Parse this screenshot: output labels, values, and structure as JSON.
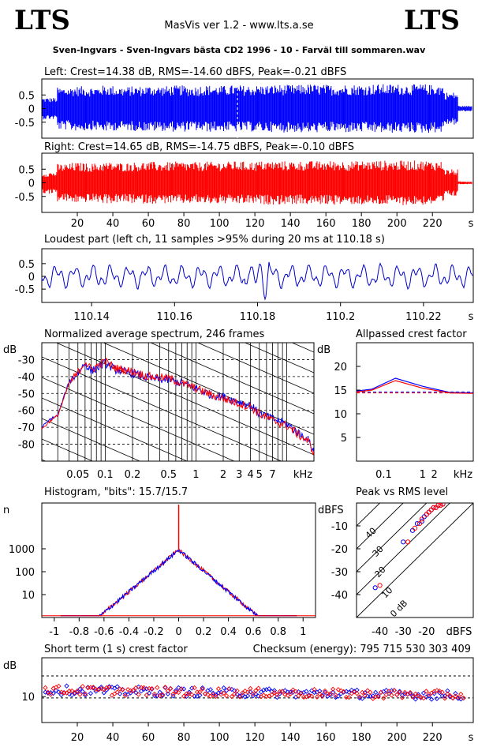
{
  "header": {
    "logo_left": "LTS",
    "logo_right": "LTS",
    "app_title": "MasVis ver 1.2 - www.lts.a.se",
    "file_name": "Sven-Ingvars - Sven-Ingvars bästa CD2 1996 - 10 - Farväl till sommaren.wav"
  },
  "colors": {
    "left": "#0000ff",
    "right": "#ff0000",
    "loudest": "#0000cc",
    "grid": "#000000"
  },
  "chart_data": [
    {
      "id": "left_waveform",
      "type": "area",
      "title": "Left: Crest=14.38 dB, RMS=-14.60 dBFS, Peak=-0.21 dBFS",
      "yticks": [
        "0.5",
        "0",
        "-0.5"
      ],
      "ylim": [
        -1,
        1
      ],
      "xlim": [
        0,
        243
      ],
      "series": [
        {
          "name": "Left",
          "envelope": [
            0.4,
            0.78,
            0.82,
            0.8,
            0.85,
            0.8,
            0.82,
            0.84,
            0.83,
            0.85,
            0.82,
            0.86,
            0.84,
            0.86,
            0.85,
            0.86,
            0.88,
            0.87,
            0.9,
            0.88,
            0.87,
            0.89,
            0.88,
            0.9,
            0.9,
            0.89,
            0.9,
            0.88,
            0.6,
            0.1
          ]
        }
      ]
    },
    {
      "id": "right_waveform",
      "type": "area",
      "title": "Right: Crest=14.65 dB, RMS=-14.75 dBFS, Peak=-0.10 dBFS",
      "yticks": [
        "0.5",
        "0",
        "-0.5"
      ],
      "ylim": [
        -1,
        1
      ],
      "xlim": [
        0,
        243
      ],
      "xticks": [
        "20",
        "40",
        "60",
        "80",
        "100",
        "120",
        "140",
        "160",
        "180",
        "200",
        "220"
      ],
      "xunit": "s",
      "series": [
        {
          "name": "Right",
          "envelope": [
            0.4,
            0.7,
            0.74,
            0.72,
            0.76,
            0.74,
            0.76,
            0.77,
            0.76,
            0.78,
            0.76,
            0.78,
            0.78,
            0.79,
            0.78,
            0.8,
            0.8,
            0.79,
            0.8,
            0.8,
            0.81,
            0.8,
            0.81,
            0.82,
            0.81,
            0.82,
            0.82,
            0.8,
            0.5,
            0.05
          ]
        }
      ]
    },
    {
      "id": "loudest_part",
      "type": "line",
      "title": "Loudest part (left  ch, 11 samples >95% during 20 ms at 110.18 s)",
      "yticks": [
        "0.5",
        "0",
        "-0.5"
      ],
      "ylim": [
        -1,
        1
      ],
      "xlim": [
        110.128,
        110.232
      ],
      "xticks": [
        "110.14",
        "110.16",
        "110.18",
        "110.2",
        "110.22"
      ],
      "xunit": "s"
    },
    {
      "id": "avg_spectrum",
      "type": "line",
      "title": "Normalized average spectrum, 246 frames",
      "ylabel": "dB",
      "yticks": [
        "-30",
        "-40",
        "-50",
        "-60",
        "-70",
        "-80"
      ],
      "ylim": [
        -90,
        -20
      ],
      "xticks": [
        "0.05",
        "0.1",
        "0.2",
        "0.5",
        "1",
        "2",
        "3",
        "4",
        "5",
        "7",
        "kHz"
      ],
      "xlim": [
        0.02,
        20
      ],
      "series": [
        {
          "name": "Left",
          "x": [
            0.02,
            0.025,
            0.03,
            0.035,
            0.04,
            0.05,
            0.06,
            0.07,
            0.08,
            0.1,
            0.13,
            0.16,
            0.2,
            0.3,
            0.5,
            0.7,
            1,
            1.5,
            2,
            3,
            4,
            5,
            7,
            10,
            14,
            17,
            20
          ],
          "values": [
            -70,
            -65,
            -63,
            -52,
            -43,
            -38,
            -32,
            -37,
            -35,
            -32,
            -36,
            -37,
            -38,
            -41,
            -42,
            -44,
            -47,
            -51,
            -52,
            -55,
            -57,
            -62,
            -65,
            -68,
            -74,
            -77,
            -84
          ]
        },
        {
          "name": "Right",
          "x": [
            0.02,
            0.025,
            0.03,
            0.035,
            0.04,
            0.05,
            0.06,
            0.07,
            0.08,
            0.1,
            0.13,
            0.16,
            0.2,
            0.3,
            0.5,
            0.7,
            1,
            1.5,
            2,
            3,
            4,
            5,
            7,
            10,
            14,
            17,
            20
          ],
          "values": [
            -71,
            -66,
            -63,
            -53,
            -44,
            -38,
            -31,
            -36,
            -34,
            -31,
            -35,
            -36,
            -37,
            -40,
            -41,
            -44,
            -47,
            -51,
            -53,
            -56,
            -58,
            -62,
            -66,
            -69,
            -75,
            -78,
            -85
          ]
        }
      ]
    },
    {
      "id": "allpass_crest",
      "type": "line",
      "title": "Allpassed crest factor",
      "ylabel": "dB",
      "yticks": [
        "20",
        "15",
        "10",
        "5"
      ],
      "ylim": [
        0,
        25
      ],
      "xticks": [
        "0.1",
        "1",
        "2",
        "kHz"
      ],
      "xlim": [
        0.02,
        20
      ],
      "series": [
        {
          "name": "Left",
          "x": [
            0.02,
            0.05,
            0.2,
            1,
            5,
            20
          ],
          "values": [
            14.8,
            15.2,
            17.5,
            15.8,
            14.5,
            14.4
          ]
        },
        {
          "name": "Right",
          "x": [
            0.02,
            0.05,
            0.2,
            1,
            5,
            20
          ],
          "values": [
            14.6,
            15.0,
            17.0,
            15.4,
            14.4,
            14.3
          ]
        }
      ]
    },
    {
      "id": "histogram",
      "type": "line",
      "title": "Histogram, \"bits\": 15.7/15.7",
      "ylabel": "n",
      "yticks": [
        "1000",
        "100",
        "10"
      ],
      "ylim": [
        1,
        100000
      ],
      "xticks": [
        "-1",
        "-0.8",
        "-0.6",
        "-0.4",
        "-0.2",
        "0",
        "0.2",
        "0.4",
        "0.6",
        "0.8",
        "1"
      ],
      "xlim": [
        -1.1,
        1.1
      ]
    },
    {
      "id": "peak_vs_rms",
      "type": "scatter",
      "title": "Peak vs RMS level",
      "ylabel": "dBFS",
      "xlabel": "dBFS",
      "yticks": [
        "-10",
        "-20",
        "-30",
        "-40"
      ],
      "xticks": [
        "-40",
        "-30",
        "-20"
      ],
      "xlim": [
        -50,
        0
      ],
      "ylim": [
        -50,
        0
      ],
      "line_labels": [
        "40",
        "30",
        "20",
        "10",
        "0 dB"
      ],
      "series": [
        {
          "name": "Left",
          "x": [
            -26,
            -24,
            -22,
            -21,
            -20,
            -19,
            -18,
            -17,
            -16,
            -15,
            -14,
            -13,
            -30,
            -42
          ],
          "values": [
            -12,
            -9,
            -8,
            -6,
            -5,
            -4,
            -3,
            -2,
            -2,
            -1,
            -1,
            -0.5,
            -17,
            -37
          ]
        },
        {
          "name": "Right",
          "x": [
            -25,
            -23,
            -22,
            -20,
            -19,
            -18,
            -17,
            -16,
            -15,
            -14,
            -13,
            -28,
            -40
          ],
          "values": [
            -11,
            -9,
            -7,
            -5,
            -4,
            -3,
            -2,
            -2,
            -1,
            -1,
            -0.5,
            -17,
            -36
          ]
        }
      ]
    },
    {
      "id": "short_term_crest",
      "type": "scatter",
      "title": "Short term (1 s) crest factor",
      "checksum": "Checksum (energy):   795 715 530 303 409",
      "ylabel": "dB",
      "yticks": [
        "10"
      ],
      "ylim": [
        0,
        25
      ],
      "xticks": [
        "20",
        "40",
        "60",
        "80",
        "100",
        "120",
        "140",
        "160",
        "180",
        "200",
        "220"
      ],
      "xunit": "s",
      "xlim": [
        0,
        243
      ]
    }
  ]
}
